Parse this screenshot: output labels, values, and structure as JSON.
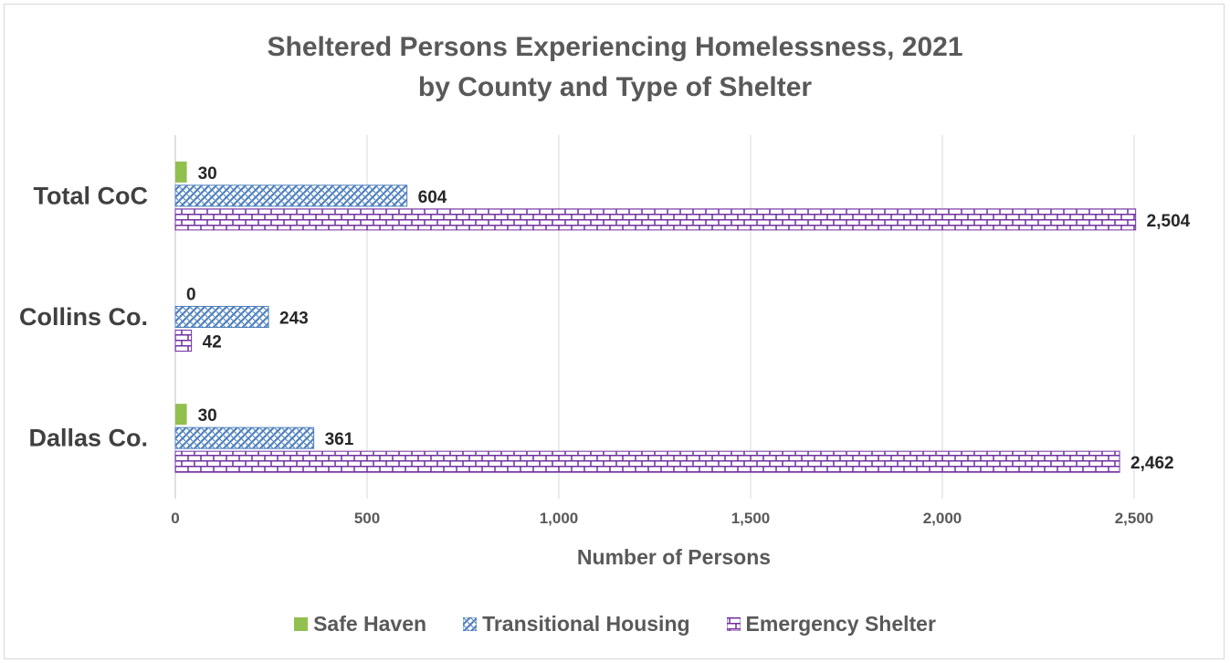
{
  "chart_data": {
    "type": "bar",
    "orientation": "horizontal",
    "title": [
      "Sheltered Persons Experiencing Homelessness, 2021",
      "by County and Type of Shelter"
    ],
    "xlabel": "Number of Persons",
    "ylabel": "",
    "xlim": [
      0,
      2500
    ],
    "ticks": [
      0,
      500,
      1000,
      1500,
      2000,
      2500
    ],
    "tick_labels": [
      "0",
      "500",
      "1,000",
      "1,500",
      "2,000",
      "2,500"
    ],
    "grid": true,
    "legend_position": "bottom",
    "categories": [
      "Total CoC",
      "Collins Co.",
      "Dallas Co."
    ],
    "series": [
      {
        "name": "Safe Haven",
        "color": "#92c050",
        "pattern": "solid",
        "values": [
          30,
          0,
          30
        ],
        "labels": [
          "30",
          "0",
          "30"
        ]
      },
      {
        "name": "Transitional Housing",
        "color": "#4f81bd",
        "pattern": "diagonal-weave",
        "values": [
          604,
          243,
          361
        ],
        "labels": [
          "604",
          "243",
          "361"
        ]
      },
      {
        "name": "Emergency Shelter",
        "color": "#7030a0",
        "pattern": "brick",
        "values": [
          2504,
          42,
          2462
        ],
        "labels": [
          "2,504",
          "42",
          "2,462"
        ]
      }
    ]
  }
}
